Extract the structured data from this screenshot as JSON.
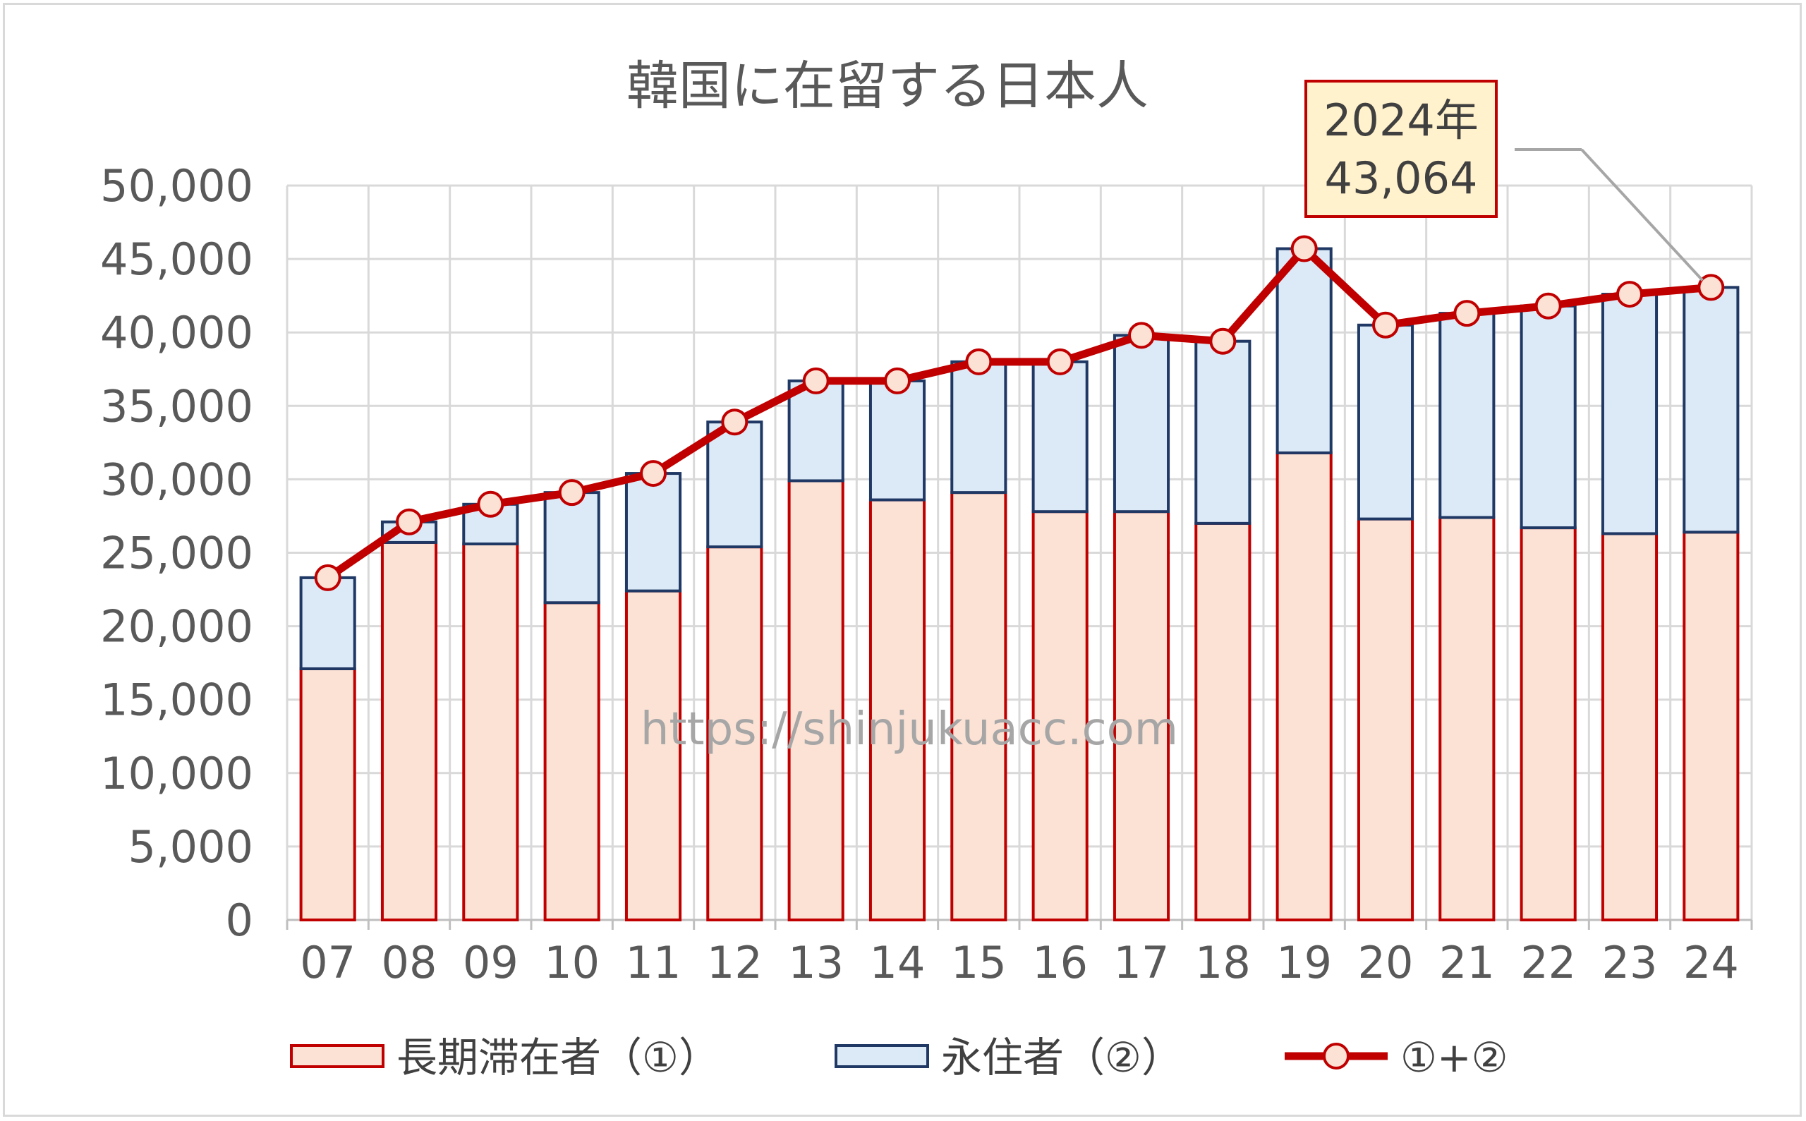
{
  "chart_data": {
    "type": "bar",
    "stacked": true,
    "title": "韓国に在留する日本人",
    "categories": [
      "07",
      "08",
      "09",
      "10",
      "11",
      "12",
      "13",
      "14",
      "15",
      "16",
      "17",
      "18",
      "19",
      "20",
      "21",
      "22",
      "23",
      "24"
    ],
    "series": [
      {
        "name": "長期滞在者（①）",
        "type": "bar",
        "fill": "#fbe2d5",
        "stroke": "#c00000",
        "values": [
          17100,
          25700,
          25600,
          21600,
          22400,
          25400,
          29900,
          28600,
          29100,
          27800,
          27800,
          27000,
          31800,
          27300,
          27400,
          26700,
          26300,
          26400
        ]
      },
      {
        "name": "永住者（②）",
        "type": "bar",
        "fill": "#dce9f7",
        "stroke": "#1f3864",
        "values": [
          6200,
          1400,
          2700,
          7500,
          8000,
          8500,
          6800,
          8100,
          8900,
          10200,
          12000,
          12400,
          13900,
          13200,
          13900,
          15100,
          16300,
          16664
        ]
      },
      {
        "name": "①+②",
        "type": "line",
        "stroke": "#c00000",
        "marker_fill": "#fbe2d5",
        "values": [
          23300,
          27100,
          28300,
          29100,
          30400,
          33900,
          36700,
          36700,
          38000,
          38000,
          39800,
          39400,
          45700,
          40500,
          41300,
          41800,
          42600,
          43064
        ]
      }
    ],
    "ylim": [
      0,
      50000
    ],
    "yticks": [
      "0",
      "5,000",
      "10,000",
      "15,000",
      "20,000",
      "25,000",
      "30,000",
      "35,000",
      "40,000",
      "45,000",
      "50,000"
    ],
    "grid": true,
    "legend_position": "bottom",
    "annotation": {
      "line1": "2024年",
      "line2": "43,064",
      "category": "24"
    },
    "watermark": "https://shinjukuacc.com"
  }
}
